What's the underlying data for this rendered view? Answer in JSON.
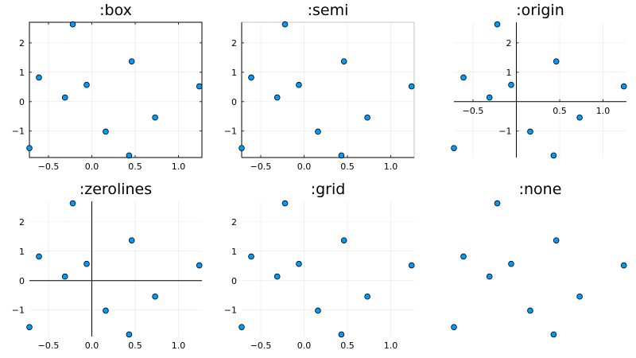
{
  "chart_data": [
    {
      "type": "scatter",
      "title": ":box",
      "framestyle": "box",
      "x": [
        -0.72,
        -0.61,
        -0.31,
        -0.22,
        -0.06,
        0.16,
        0.43,
        0.46,
        0.73,
        1.24
      ],
      "y": [
        -1.58,
        0.82,
        0.14,
        2.63,
        0.57,
        -1.02,
        -1.83,
        1.37,
        -0.54,
        0.52
      ],
      "xlim": [
        -0.72,
        1.27
      ],
      "ylim": [
        -1.9,
        2.7
      ],
      "xticks": [
        -0.5,
        0.0,
        0.5,
        1.0
      ],
      "xtick_labels": [
        "−0.5",
        "0.0",
        "0.5",
        "1.0"
      ],
      "yticks": [
        -1,
        0,
        1,
        2
      ],
      "ytick_labels": [
        "−1",
        "0",
        "1",
        "2"
      ],
      "grid": true,
      "marker_color": "#009af9",
      "legend": "none"
    },
    {
      "type": "scatter",
      "title": ":semi",
      "framestyle": "semi",
      "x": [
        -0.72,
        -0.61,
        -0.31,
        -0.22,
        -0.06,
        0.16,
        0.43,
        0.46,
        0.73,
        1.24
      ],
      "y": [
        -1.58,
        0.82,
        0.14,
        2.63,
        0.57,
        -1.02,
        -1.83,
        1.37,
        -0.54,
        0.52
      ],
      "xlim": [
        -0.72,
        1.27
      ],
      "ylim": [
        -1.9,
        2.7
      ],
      "xticks": [
        -0.5,
        0.0,
        0.5,
        1.0
      ],
      "xtick_labels": [
        "−0.5",
        "0.0",
        "0.5",
        "1.0"
      ],
      "yticks": [
        -1,
        0,
        1,
        2
      ],
      "ytick_labels": [
        "−1",
        "0",
        "1",
        "2"
      ],
      "grid": true,
      "marker_color": "#009af9",
      "legend": "none"
    },
    {
      "type": "scatter",
      "title": ":origin",
      "framestyle": "origin",
      "x": [
        -0.72,
        -0.61,
        -0.31,
        -0.22,
        -0.06,
        0.16,
        0.43,
        0.46,
        0.73,
        1.24
      ],
      "y": [
        -1.58,
        0.82,
        0.14,
        2.63,
        0.57,
        -1.02,
        -1.83,
        1.37,
        -0.54,
        0.52
      ],
      "xlim": [
        -0.72,
        1.27
      ],
      "ylim": [
        -1.9,
        2.7
      ],
      "xticks": [
        -0.5,
        0.5,
        1.0
      ],
      "xtick_labels": [
        "−0.5",
        "0.5",
        "1.0"
      ],
      "yticks": [
        -1,
        1,
        2
      ],
      "ytick_labels": [
        "−1",
        "1",
        "2"
      ],
      "grid": true,
      "marker_color": "#009af9",
      "legend": "none"
    },
    {
      "type": "scatter",
      "title": ":zerolines",
      "framestyle": "zerolines",
      "x": [
        -0.72,
        -0.61,
        -0.31,
        -0.22,
        -0.06,
        0.16,
        0.43,
        0.46,
        0.73,
        1.24
      ],
      "y": [
        -1.58,
        0.82,
        0.14,
        2.63,
        0.57,
        -1.02,
        -1.83,
        1.37,
        -0.54,
        0.52
      ],
      "xlim": [
        -0.72,
        1.27
      ],
      "ylim": [
        -1.9,
        2.7
      ],
      "xticks": [
        -0.5,
        0.0,
        0.5,
        1.0
      ],
      "xtick_labels": [
        "−0.5",
        "0.0",
        "0.5",
        "1.0"
      ],
      "yticks": [
        -1,
        0,
        1,
        2
      ],
      "ytick_labels": [
        "−1",
        "0",
        "1",
        "2"
      ],
      "grid": true,
      "marker_color": "#009af9",
      "legend": "none"
    },
    {
      "type": "scatter",
      "title": ":grid",
      "framestyle": "grid",
      "x": [
        -0.72,
        -0.61,
        -0.31,
        -0.22,
        -0.06,
        0.16,
        0.43,
        0.46,
        0.73,
        1.24
      ],
      "y": [
        -1.58,
        0.82,
        0.14,
        2.63,
        0.57,
        -1.02,
        -1.83,
        1.37,
        -0.54,
        0.52
      ],
      "xlim": [
        -0.72,
        1.27
      ],
      "ylim": [
        -1.9,
        2.7
      ],
      "xticks": [
        -0.5,
        0.0,
        0.5,
        1.0
      ],
      "xtick_labels": [
        "−0.5",
        "0.0",
        "0.5",
        "1.0"
      ],
      "yticks": [
        -1,
        0,
        1,
        2
      ],
      "ytick_labels": [
        "−1",
        "0",
        "1",
        "2"
      ],
      "grid": true,
      "marker_color": "#009af9",
      "legend": "none"
    },
    {
      "type": "scatter",
      "title": ":none",
      "framestyle": "none",
      "x": [
        -0.72,
        -0.61,
        -0.31,
        -0.22,
        -0.06,
        0.16,
        0.43,
        0.46,
        0.73,
        1.24
      ],
      "y": [
        -1.58,
        0.82,
        0.14,
        2.63,
        0.57,
        -1.02,
        -1.83,
        1.37,
        -0.54,
        0.52
      ],
      "xlim": [
        -0.72,
        1.27
      ],
      "ylim": [
        -1.9,
        2.7
      ],
      "xticks": [],
      "xtick_labels": [],
      "yticks": [],
      "ytick_labels": [],
      "grid": false,
      "marker_color": "#009af9",
      "legend": "none"
    }
  ]
}
